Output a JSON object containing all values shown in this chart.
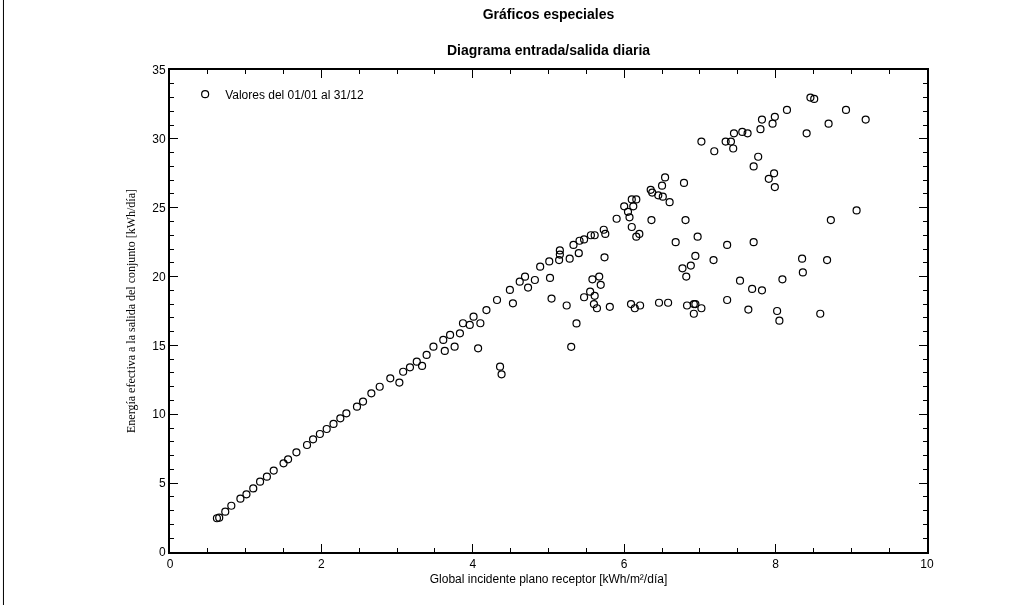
{
  "chart_data": {
    "type": "scatter",
    "title": "Gráficos especiales",
    "subtitle": "Diagrama entrada/salida diaria",
    "xlabel": "Global incidente plano receptor [kWh/m²/día]",
    "ylabel": "Energía efectiva a la salida del conjunto [kWh/día]",
    "xlim": [
      0,
      10
    ],
    "xticks": [
      0,
      2,
      4,
      6,
      8,
      10
    ],
    "ylim": [
      0,
      35
    ],
    "yticks": [
      0,
      5,
      10,
      15,
      20,
      25,
      30,
      35
    ],
    "grid": false,
    "legend": "top left",
    "marker": "circle",
    "series": [
      {
        "name": "Valores del 01/01 al 31/12",
        "color": "#000000",
        "x": [
          0.62,
          0.65,
          0.73,
          0.81,
          0.93,
          1.01,
          1.1,
          1.19,
          1.28,
          1.37,
          1.5,
          1.56,
          1.67,
          1.81,
          1.89,
          1.98,
          2.07,
          2.16,
          2.25,
          2.33,
          2.47,
          2.55,
          2.66,
          2.77,
          2.91,
          3.03,
          3.08,
          3.17,
          3.26,
          3.33,
          3.39,
          3.48,
          3.63,
          3.61,
          3.7,
          3.76,
          3.83,
          3.87,
          3.96,
          4.01,
          4.07,
          4.1,
          4.18,
          4.32,
          4.36,
          4.38,
          4.53,
          4.49,
          4.62,
          4.69,
          4.82,
          4.89,
          4.73,
          5.04,
          5.02,
          5.01,
          5.14,
          5.15,
          5.15,
          5.28,
          5.33,
          5.4,
          5.41,
          5.47,
          5.56,
          5.61,
          5.73,
          5.75,
          5.9,
          6.0,
          6.05,
          6.07,
          6.1,
          6.1,
          6.12,
          6.16,
          6.16,
          6.2,
          6.35,
          6.36,
          6.37,
          6.45,
          6.5,
          6.51,
          6.54,
          6.6,
          6.79,
          6.81,
          7.02,
          7.19,
          7.34,
          7.41,
          7.44,
          7.45,
          7.56,
          7.63,
          7.71,
          7.77,
          7.8,
          7.82,
          7.91,
          7.96,
          7.98,
          7.99,
          7.99,
          8.15,
          8.41,
          8.46,
          8.51,
          8.7,
          8.93,
          9.19,
          5.74,
          6.68,
          6.97,
          7.36,
          7.71,
          7.18,
          6.94,
          6.88,
          6.77,
          6.82,
          8.35,
          8.68,
          8.36,
          8.73,
          9.07,
          8.09,
          7.53,
          7.69,
          7.82,
          7.36,
          7.64,
          8.02,
          8.05,
          8.59,
          7.02,
          6.92,
          6.94,
          6.92,
          6.83,
          6.58,
          6.46,
          6.21,
          6.14,
          6.09,
          5.81,
          5.64,
          5.6,
          5.61,
          5.55,
          5.47,
          5.58,
          5.67,
          5.69,
          5.24,
          5.37,
          5.3
        ],
        "values": [
          2.45,
          2.49,
          2.93,
          3.36,
          3.87,
          4.19,
          4.62,
          5.11,
          5.47,
          5.91,
          6.44,
          6.73,
          7.24,
          7.77,
          8.18,
          8.57,
          8.93,
          9.3,
          9.71,
          10.07,
          10.55,
          10.92,
          11.52,
          12.0,
          12.61,
          12.3,
          13.09,
          13.41,
          13.82,
          13.51,
          14.31,
          14.91,
          14.6,
          15.4,
          15.76,
          14.91,
          15.88,
          16.61,
          16.49,
          17.09,
          14.79,
          16.61,
          17.57,
          18.3,
          13.46,
          12.9,
          18.06,
          19.03,
          19.63,
          19.99,
          19.75,
          20.72,
          19.2,
          18.4,
          19.9,
          21.1,
          21.2,
          21.9,
          21.6,
          21.3,
          22.3,
          21.7,
          22.6,
          22.7,
          23.0,
          23.0,
          23.4,
          23.1,
          24.2,
          25.1,
          24.7,
          24.3,
          23.6,
          25.6,
          25.1,
          25.6,
          22.9,
          23.1,
          26.3,
          24.1,
          26.1,
          25.9,
          26.6,
          25.8,
          27.2,
          25.4,
          26.8,
          24.1,
          29.8,
          29.1,
          29.8,
          29.8,
          29.3,
          30.4,
          30.5,
          30.4,
          28.0,
          28.7,
          30.7,
          31.4,
          27.1,
          31.1,
          27.5,
          31.6,
          26.5,
          32.1,
          30.4,
          33.0,
          32.9,
          31.1,
          32.1,
          31.4,
          21.4,
          22.5,
          22.9,
          22.3,
          22.5,
          21.2,
          21.5,
          20.8,
          20.6,
          20.0,
          21.3,
          21.2,
          20.3,
          24.1,
          24.8,
          19.8,
          19.7,
          19.1,
          19.0,
          18.3,
          17.6,
          17.5,
          16.8,
          17.3,
          17.7,
          18.0,
          18.0,
          17.3,
          17.9,
          18.1,
          18.1,
          17.9,
          17.7,
          18.0,
          17.8,
          17.7,
          18.0,
          18.6,
          18.9,
          18.5,
          19.8,
          20.0,
          19.4,
          17.9,
          16.6,
          14.9
        ]
      }
    ]
  }
}
